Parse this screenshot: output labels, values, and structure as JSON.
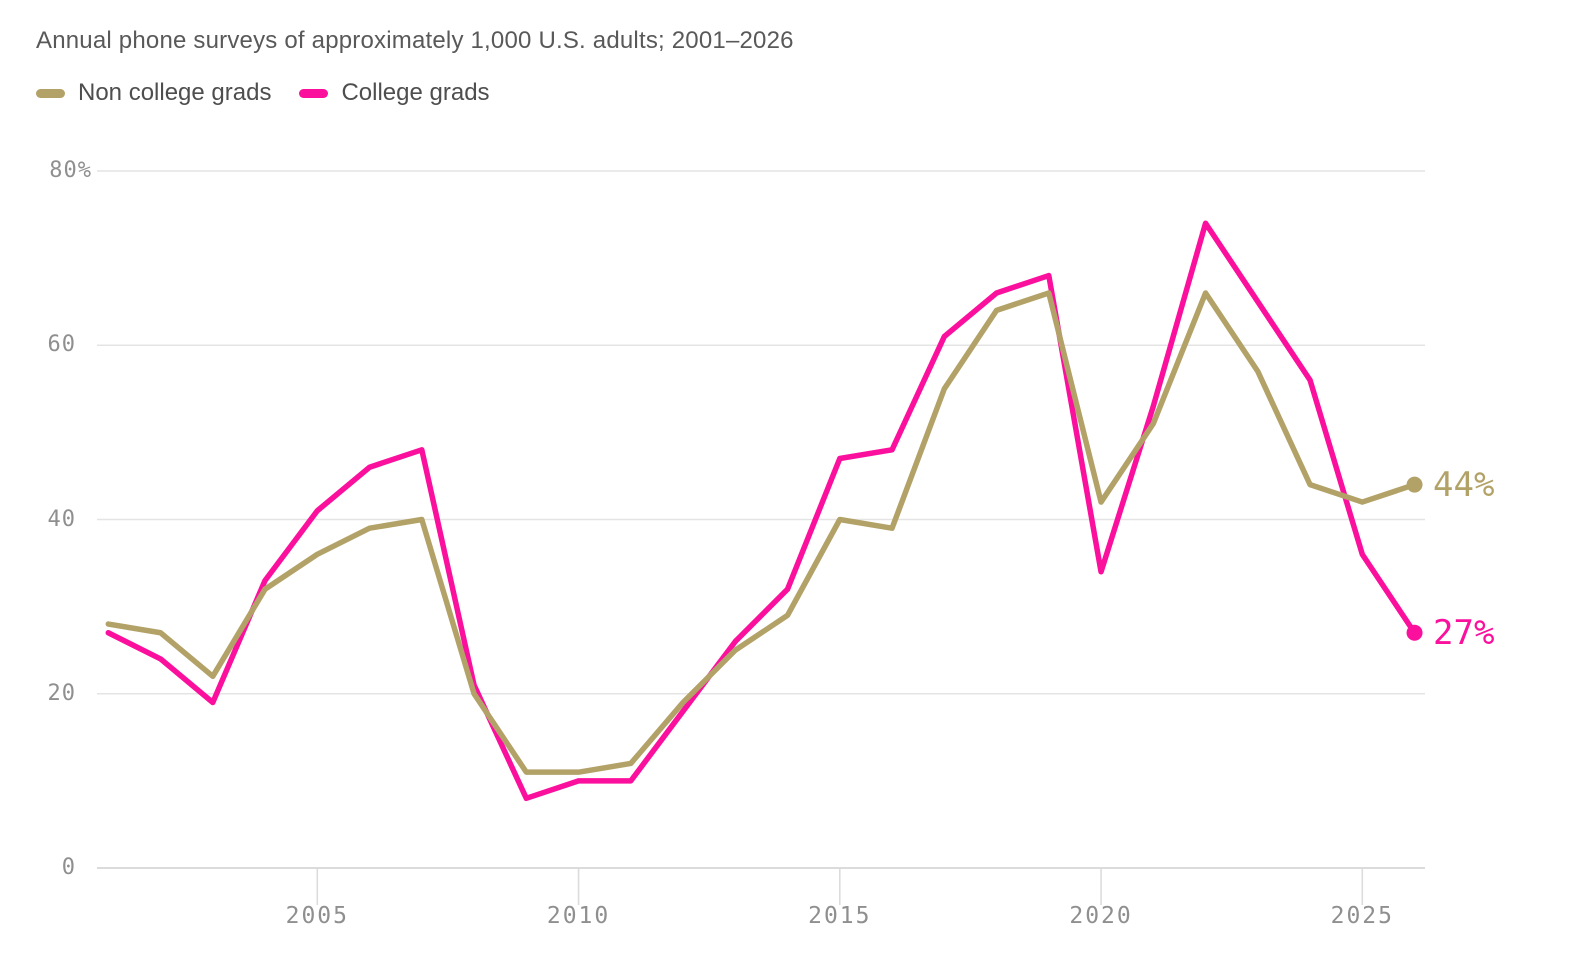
{
  "title": "Annual phone surveys of approximately 1,000 U.S. adults; 2001–2026",
  "legend": [
    {
      "label": "Non college grads",
      "color": "#b3a268"
    },
    {
      "label": "College grads",
      "color": "#fb109e"
    }
  ],
  "colors": {
    "grid": "#e4e4e4",
    "axis": "#cfcfcf",
    "tick": "#dcdcdc",
    "axis_text": "#8f8f8f",
    "title_text": "#595959"
  },
  "chart_data": {
    "type": "line",
    "x": [
      2001,
      2002,
      2003,
      2004,
      2005,
      2006,
      2007,
      2008,
      2009,
      2010,
      2011,
      2012,
      2013,
      2014,
      2015,
      2016,
      2017,
      2018,
      2019,
      2020,
      2021,
      2022,
      2023,
      2024,
      2025,
      2026
    ],
    "series": [
      {
        "name": "Non college grads",
        "color": "#b3a268",
        "values": [
          28,
          27,
          22,
          32,
          36,
          39,
          40,
          20,
          11,
          11,
          12,
          19,
          25,
          29,
          40,
          39,
          55,
          64,
          66,
          42,
          51,
          66,
          57,
          44,
          42,
          44
        ],
        "end_label": "44%",
        "end_value": 44
      },
      {
        "name": "College grads",
        "color": "#fb109e",
        "values": [
          27,
          24,
          19,
          33,
          41,
          46,
          48,
          21,
          8,
          10,
          10,
          18,
          26,
          32,
          47,
          48,
          61,
          66,
          68,
          34,
          53,
          74,
          65,
          56,
          36,
          27
        ],
        "end_label": "27%",
        "end_value": 27
      }
    ],
    "title": "Annual phone surveys of approximately 1,000 U.S. adults; 2001–2026",
    "xlabel": "",
    "ylabel": "",
    "xlim": [
      2001,
      2026
    ],
    "ylim": [
      0,
      80
    ],
    "y_grid": [
      0,
      20,
      40,
      60,
      80
    ],
    "y_ticks": [
      "80%",
      "60",
      "40",
      "20",
      "0"
    ],
    "y_tick_values": [
      80,
      60,
      40,
      20,
      0
    ],
    "x_ticks": [
      "2005",
      "2010",
      "2015",
      "2020",
      "2025"
    ],
    "x_tick_values": [
      2005,
      2010,
      2015,
      2020,
      2025
    ],
    "grid": "horizontal",
    "legend_position": "top-left"
  }
}
